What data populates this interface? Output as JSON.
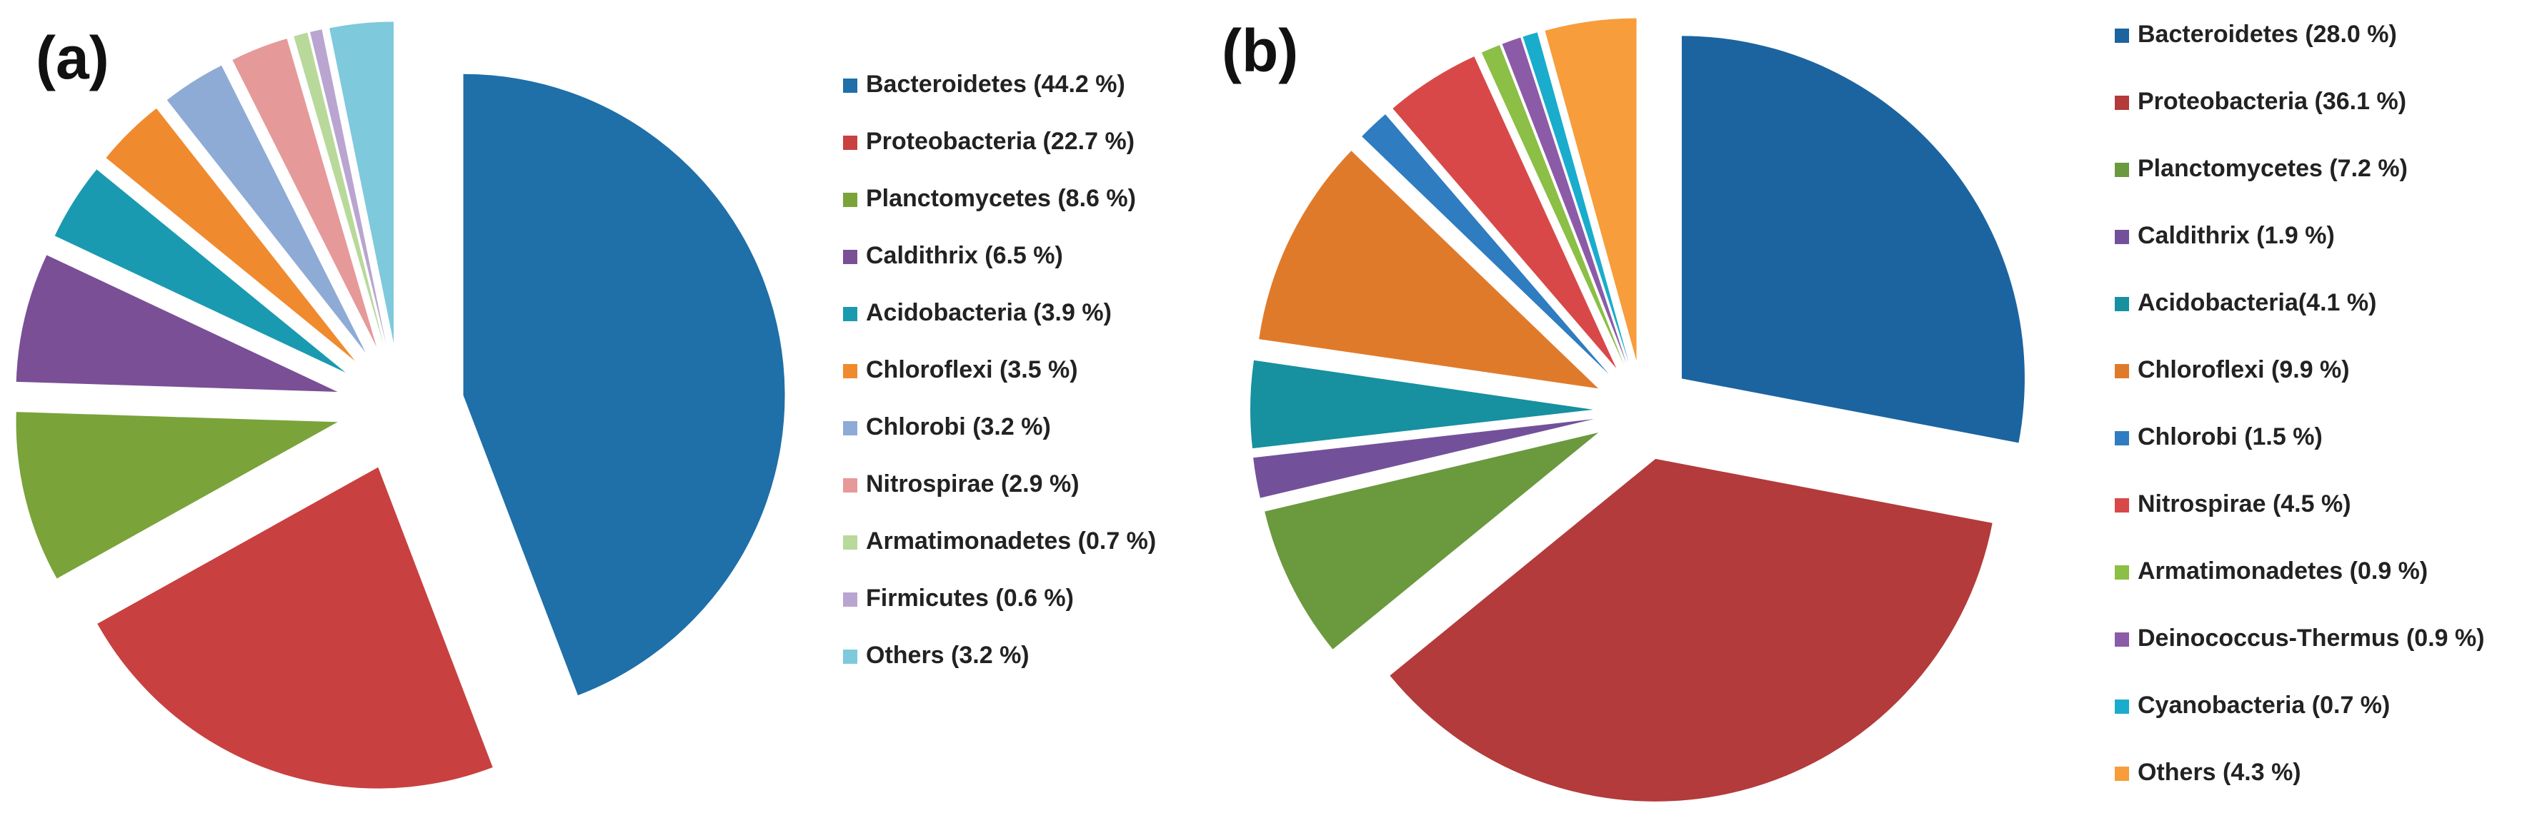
{
  "chart_data": [
    {
      "type": "pie",
      "title": "(a)",
      "categories": [
        "Bacteroidetes (44.2 %)",
        "Proteobacteria (22.7 %)",
        "Planctomycetes (8.6 %)",
        "Caldithrix (6.5 %)",
        "Acidobacteria (3.9 %)",
        "Chloroflexi (3.5 %)",
        "Chlorobi (3.2 %)",
        "Nitrospirae (2.9 %)",
        "Armatimonadetes (0.7 %)",
        "Firmicutes (0.6 %)",
        "Others (3.2 %)"
      ],
      "values": [
        44.2,
        22.7,
        8.6,
        6.5,
        3.9,
        3.5,
        3.2,
        2.9,
        0.7,
        0.6,
        3.2
      ],
      "colors": [
        "#1f6fa8",
        "#c94040",
        "#7aa33a",
        "#7a4f96",
        "#1a9ab0",
        "#f08a2e",
        "#8eabd6",
        "#e69999",
        "#b8d99a",
        "#b9a5cf",
        "#7ec9dc"
      ]
    },
    {
      "type": "pie",
      "title": "(b)",
      "categories": [
        "Bacteroidetes (28.0 %)",
        "Proteobacteria (36.1 %)",
        "Planctomycetes (7.2 %)",
        "Caldithrix (1.9 %)",
        "Acidobacteria(4.1 %)",
        "Chloroflexi (9.9 %)",
        "Chlorobi (1.5 %)",
        "Nitrospirae (4.5 %)",
        "Armatimonadetes (0.9 %)",
        "Deinococcus-Thermus (0.9 %)",
        "Cyanobacteria (0.7 %)",
        "Others (4.3 %)"
      ],
      "values": [
        28.0,
        36.1,
        7.2,
        1.9,
        4.1,
        9.9,
        1.5,
        4.5,
        0.9,
        0.9,
        0.7,
        4.3
      ],
      "colors": [
        "#1b64a0",
        "#b33b3b",
        "#6a993e",
        "#73519a",
        "#17909f",
        "#e07a2b",
        "#2f7cc0",
        "#d94848",
        "#8bbf45",
        "#8c5ba8",
        "#1aaccc",
        "#f79d3c"
      ]
    }
  ]
}
